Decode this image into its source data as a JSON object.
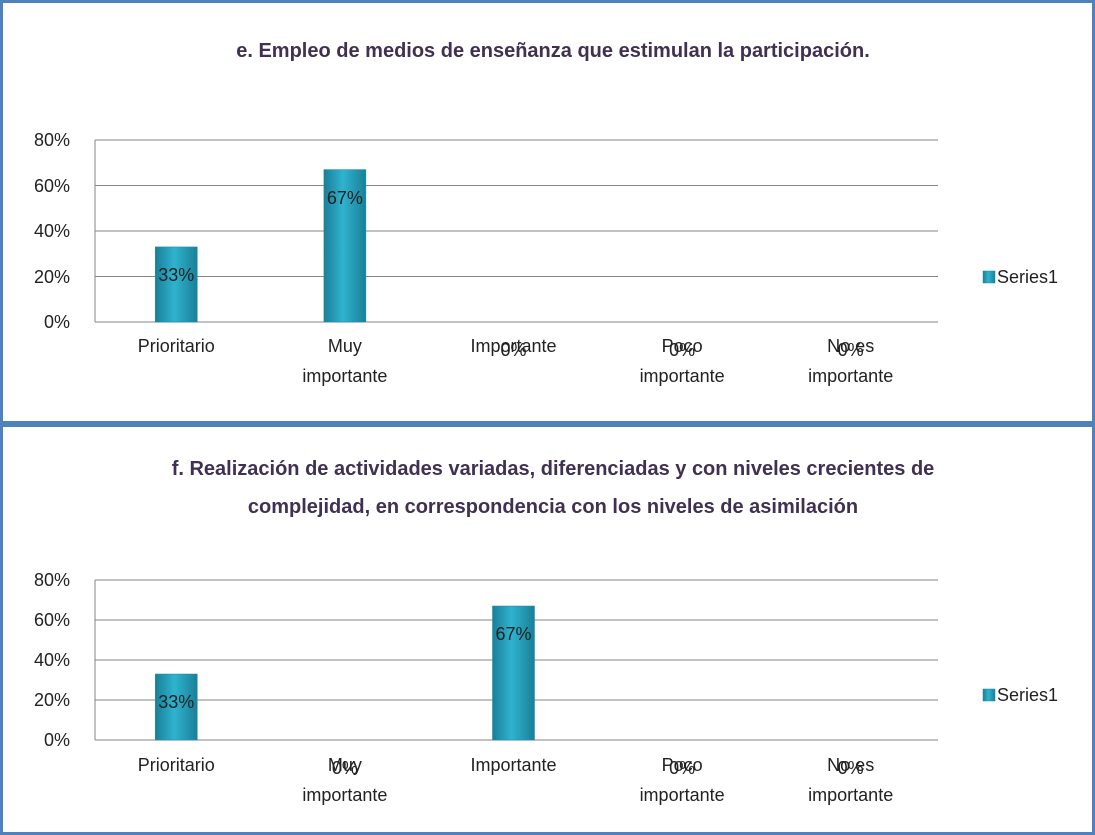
{
  "chart_data": [
    {
      "type": "bar",
      "title": "e. Empleo de medios de enseñanza que estimulan la participación.",
      "categories": [
        "Prioritario",
        "Muy importante",
        "Importante",
        "Poco importante",
        "No es importante"
      ],
      "series": [
        {
          "name": "Series1",
          "color": "#2fb3cf",
          "values": [
            33,
            67,
            0,
            0,
            0
          ],
          "value_labels": [
            "33%",
            "67%",
            "0%",
            "0%",
            "0%"
          ]
        }
      ],
      "ylim": [
        0,
        80
      ],
      "yticks": [
        {
          "value": 0,
          "label": "0%"
        },
        {
          "value": 20,
          "label": "20%"
        },
        {
          "value": 40,
          "label": "40%"
        },
        {
          "value": 60,
          "label": "60%"
        },
        {
          "value": 80,
          "label": "80%"
        }
      ],
      "grid": true,
      "legend": "right"
    },
    {
      "type": "bar",
      "title": "f. Realización de actividades variadas, diferenciadas y con niveles crecientes de complejidad, en correspondencia con los niveles de asimilación",
      "categories": [
        "Prioritario",
        "Muy importante",
        "Importante",
        "Poco importante",
        "No es importante"
      ],
      "series": [
        {
          "name": "Series1",
          "color": "#2fb3cf",
          "values": [
            33,
            0,
            67,
            0,
            0
          ],
          "value_labels": [
            "33%",
            "0%",
            "67%",
            "0%",
            "0%"
          ]
        }
      ],
      "ylim": [
        0,
        80
      ],
      "yticks": [
        {
          "value": 0,
          "label": "0%"
        },
        {
          "value": 20,
          "label": "20%"
        },
        {
          "value": 40,
          "label": "40%"
        },
        {
          "value": 60,
          "label": "60%"
        },
        {
          "value": 80,
          "label": "80%"
        }
      ],
      "grid": true,
      "legend": "right"
    }
  ]
}
